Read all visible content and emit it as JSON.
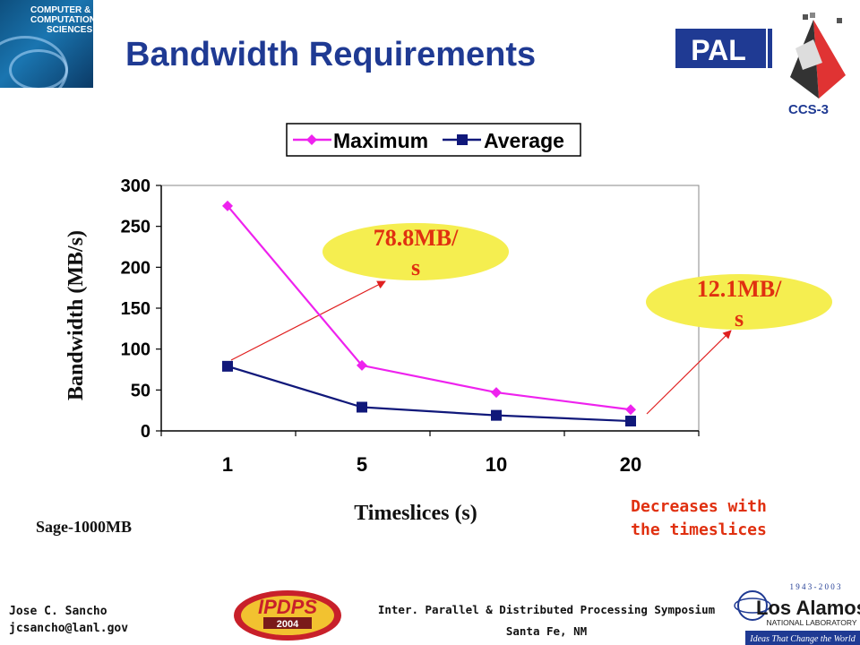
{
  "slide": {
    "title": "Bandwidth Requirements",
    "ccs_logo_text": [
      "COMPUTER &",
      "COMPUTATIONAL",
      "SCIENCES"
    ],
    "pal_logo_text": "PAL",
    "ccs3_label": "CCS-3",
    "sage_label": "Sage-1000MB",
    "decrease_note": "Decreases with\nthe timeslices",
    "author_name": "Jose C. Sancho",
    "author_email": "jcsancho@lanl.gov",
    "conference_name": "Inter. Parallel & Distributed Processing Symposium",
    "conference_place": "Santa Fe, NM",
    "ipdps_logo_text": "IPDPS",
    "ipdps_year": "2004",
    "lanl_years": "1 9 4 3 - 2 0 0 3",
    "lanl_name": "Los Alamos",
    "lanl_sub": "NATIONAL LABORATORY",
    "lanl_tagline": "Ideas That Change the World"
  },
  "chart_data": {
    "type": "line",
    "categories": [
      "1",
      "5",
      "10",
      "20"
    ],
    "series": [
      {
        "name": "Maximum",
        "values": [
          275,
          80,
          47,
          26
        ],
        "color": "#ee22ee",
        "marker": "diamond"
      },
      {
        "name": "Average",
        "values": [
          79,
          29,
          19,
          12
        ],
        "color": "#10187a",
        "marker": "square"
      }
    ],
    "xlabel": "Timeslices (s)",
    "ylabel": "Bandwidth (MB/s)",
    "ylim": [
      0,
      300
    ],
    "yticks": [
      0,
      50,
      100,
      150,
      200,
      250,
      300
    ],
    "grid": false,
    "legend": "top",
    "annotations": [
      {
        "text_line1": "78.8MB/",
        "text_line2": "s",
        "color": "#f5ee50"
      },
      {
        "text_line1": "12.1MB/",
        "text_line2": "s",
        "color": "#f5ee50"
      }
    ]
  }
}
